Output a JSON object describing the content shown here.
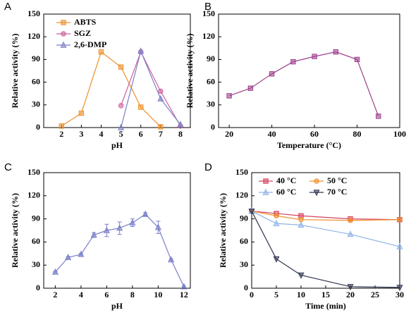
{
  "chart_data": [
    {
      "type": "line",
      "label": "A",
      "xlabel": "pH",
      "ylabel": "Relative activity (%)",
      "xlim": [
        1.1,
        8.5
      ],
      "xticks": [
        2,
        3,
        4,
        5,
        6,
        7,
        8
      ],
      "ylim": [
        0,
        150
      ],
      "yticks": [
        0,
        30,
        60,
        90,
        120,
        150
      ],
      "legend": "upper left",
      "series": [
        {
          "name": "ABTS",
          "color": "#f0902a",
          "marker": "square",
          "x": [
            2,
            3,
            4,
            5,
            6,
            7
          ],
          "values": [
            2,
            19,
            100,
            80,
            27,
            1
          ]
        },
        {
          "name": "SGZ",
          "color": "#d0609c",
          "marker": "circle",
          "x": [
            5,
            6,
            7,
            8
          ],
          "values": [
            29,
            100,
            48,
            2
          ]
        },
        {
          "name": "2,6-DMP",
          "color": "#7a7fc8",
          "marker": "triangle",
          "x": [
            5,
            6,
            7,
            8
          ],
          "values": [
            0,
            101,
            38,
            4
          ]
        }
      ]
    },
    {
      "type": "line",
      "label": "B",
      "xlabel": "Temperature (°C)",
      "ylabel": "Relative activity (%)",
      "xlim": [
        15,
        100
      ],
      "xticks": [
        20,
        40,
        60,
        80,
        100
      ],
      "ylim": [
        0,
        150
      ],
      "yticks": [
        0,
        30,
        60,
        90,
        120,
        150
      ],
      "color": "#9c3f8c",
      "marker": "square",
      "x": [
        20,
        30,
        40,
        50,
        60,
        70,
        80,
        90
      ],
      "values": [
        42,
        52,
        71,
        87,
        94,
        100,
        90,
        15
      ]
    },
    {
      "type": "line",
      "label": "C",
      "xlabel": "pH",
      "ylabel": "Relative activity (%)",
      "xlim": [
        1.1,
        12.5
      ],
      "xticks": [
        2,
        4,
        6,
        8,
        10,
        12
      ],
      "ylim": [
        0,
        150
      ],
      "yticks": [
        0,
        30,
        60,
        90,
        120,
        150
      ],
      "color": "#7a7fc8",
      "marker": "triangle",
      "x": [
        2,
        3,
        4,
        5,
        6,
        7,
        8,
        9,
        10,
        11,
        12
      ],
      "values": [
        21,
        40,
        44,
        69,
        75,
        78,
        85,
        96,
        79,
        37,
        2
      ],
      "errors": [
        1,
        1,
        1,
        3,
        8,
        8,
        5,
        2,
        8,
        1,
        1
      ]
    },
    {
      "type": "line",
      "label": "D",
      "xlabel": "Time (min)",
      "ylabel": "Relative activity (%)",
      "xlim": [
        0,
        30
      ],
      "xticks": [
        0,
        5,
        10,
        15,
        20,
        25,
        30
      ],
      "ylim": [
        0,
        150
      ],
      "yticks": [
        0,
        30,
        60,
        90,
        120,
        150
      ],
      "legend": "upper left",
      "series": [
        {
          "name": "40 °C",
          "color": "#d8405e",
          "marker": "square",
          "x": [
            0,
            5,
            10,
            20,
            30
          ],
          "values": [
            100,
            97,
            94,
            90,
            89
          ]
        },
        {
          "name": "50 °C",
          "color": "#f0902a",
          "marker": "circle",
          "x": [
            0,
            5,
            10,
            20,
            30
          ],
          "values": [
            100,
            94,
            89,
            88,
            89
          ]
        },
        {
          "name": "60 °C",
          "color": "#8fb4e6",
          "marker": "triangle",
          "x": [
            0,
            5,
            10,
            20,
            30
          ],
          "values": [
            100,
            84,
            82,
            70,
            54
          ]
        },
        {
          "name": "70 °C",
          "color": "#2f3552",
          "marker": "down",
          "x": [
            0,
            5,
            10,
            20,
            30
          ],
          "values": [
            100,
            38,
            17,
            2,
            1
          ]
        }
      ]
    }
  ]
}
